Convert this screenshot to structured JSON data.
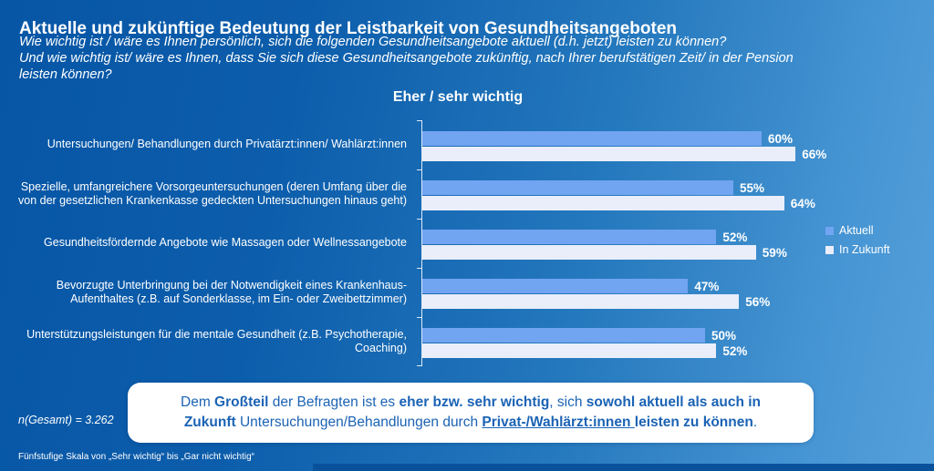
{
  "header": {
    "title": "Aktuelle und zukünftige Bedeutung der Leistbarkeit von Gesundheitsangeboten",
    "subtitle_lines": [
      "Wie wichtig ist / wäre es Ihnen persönlich, sich die folgenden Gesundheitsangebote aktuell (d.h. jetzt) leisten zu können?",
      "Und wie wichtig ist/ wäre es Ihnen, dass Sie sich diese Gesundheitsangebote zukünftig, nach Ihrer berufstätigen Zeit/ in der Pension",
      "leisten können?"
    ]
  },
  "chart_data": {
    "type": "bar",
    "orientation": "horizontal",
    "title": "Eher / sehr wichtig",
    "categories": [
      "Untersuchungen/ Behandlungen durch Privatärzt:innen/ Wahlärzt:innen",
      "Spezielle, umfangreichere Vorsorgeuntersuchungen (deren Umfang über die von der gesetzlichen Krankenkasse gedeckten Untersuchungen hinaus geht)",
      "Gesundheitsfördernde Angebote wie Massagen oder Wellnessangebote",
      "Bevorzugte Unterbringung bei der Notwendigkeit eines Krankenhaus-Aufenthaltes (z.B. auf Sonderklasse, im Ein- oder Zweibettzimmer)",
      "Unterstützungsleistungen für die mentale Gesundheit (z.B. Psychotherapie, Coaching)"
    ],
    "series": [
      {
        "name": "Aktuell",
        "color": "#71A4F1",
        "values": [
          60,
          55,
          52,
          47,
          50
        ]
      },
      {
        "name": "In Zukunft",
        "color": "#E9EEFA",
        "values": [
          66,
          64,
          59,
          56,
          52
        ]
      }
    ],
    "value_suffix": "%",
    "xlim": [
      0,
      100
    ],
    "grid": false,
    "legend_position": "right"
  },
  "callout": {
    "segments": [
      {
        "text": "Dem ",
        "bold": false
      },
      {
        "text": "Großteil",
        "bold": true
      },
      {
        "text": " der Befragten ist es ",
        "bold": false
      },
      {
        "text": "eher bzw. sehr wichtig",
        "bold": true
      },
      {
        "text": ", sich ",
        "bold": false
      },
      {
        "text": "sowohl aktuell als auch in Zukunft",
        "bold": true
      },
      {
        "text": " Untersuchungen/Behandlungen durch ",
        "bold": false
      },
      {
        "text": "Privat-/Wahlärzt:innen ",
        "bold": true,
        "underline": true
      },
      {
        "text": "leisten zu können",
        "bold": true
      },
      {
        "text": ".",
        "bold": false
      }
    ]
  },
  "footnotes": {
    "n_total": "n(Gesamt) = 3.262",
    "scale_note": "Fünfstufige Skala von „Sehr wichtig“ bis „Gar nicht wichtig“"
  },
  "colors": {
    "aktuell_bar": "#71A4F1",
    "in_zukunft_bar": "#E9EEFA",
    "callout_text": "#1B63B5",
    "background_left": "#0756A6",
    "background_right": "#55A0DB",
    "bottom_strip": "#0A519C"
  }
}
